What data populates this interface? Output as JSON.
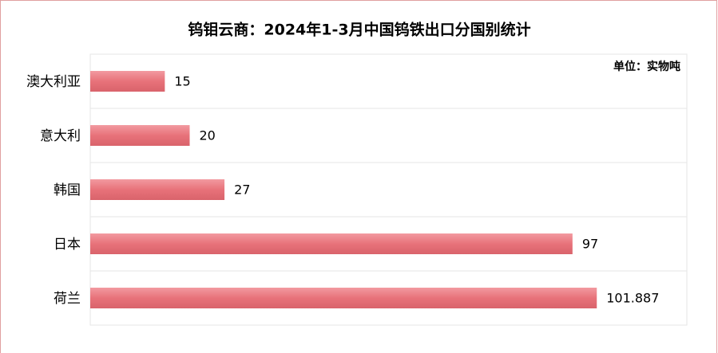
{
  "chart_data": {
    "type": "bar",
    "orientation": "horizontal",
    "title": "钨钼云商：2024年1-3月中国钨铁出口分国别统计",
    "annotation": "单位：实物吨",
    "categories": [
      "澳大利亚",
      "意大利",
      "韩国",
      "日本",
      "荷兰"
    ],
    "values": [
      15,
      20,
      27,
      97,
      101.887
    ],
    "color": "#e8727a",
    "xlim": [
      0,
      120
    ]
  }
}
